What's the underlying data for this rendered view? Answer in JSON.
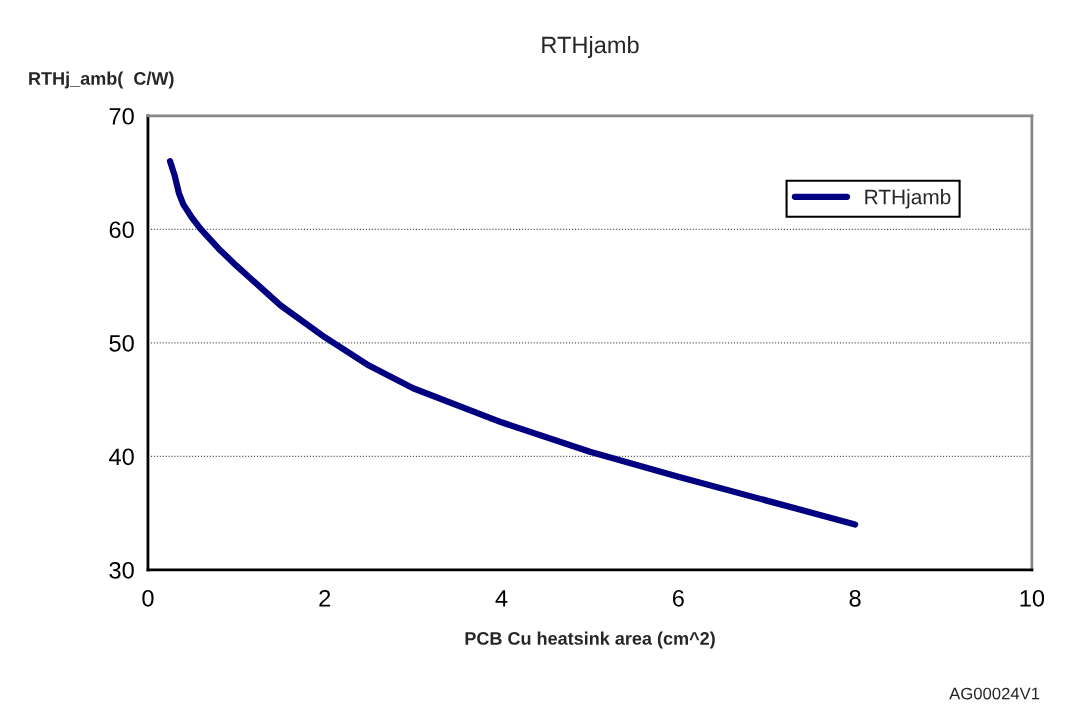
{
  "chart_data": {
    "type": "line",
    "title": "RTHjamb",
    "xlabel": "PCB Cu heatsink area (cm^2)",
    "ylabel": "RTHj_amb(  C/W)",
    "annotations": [
      "AG00024V1"
    ],
    "x": [
      0.25,
      0.3,
      0.35,
      0.4,
      0.5,
      0.6,
      0.8,
      1,
      1.5,
      2,
      2.5,
      3,
      4,
      5,
      6,
      7,
      8
    ],
    "series": [
      {
        "name": "RTHjamb",
        "color": "#000080",
        "values": [
          66,
          64.8,
          63.2,
          62.2,
          61,
          60,
          58.3,
          56.8,
          53.3,
          50.5,
          48,
          46,
          43,
          40.4,
          38.2,
          36.1,
          34
        ]
      }
    ],
    "xlim": [
      0,
      10
    ],
    "xticks": [
      0,
      2,
      4,
      6,
      8,
      10
    ],
    "ylim": [
      30,
      70
    ],
    "yticks": [
      30,
      40,
      50,
      60,
      70
    ],
    "grid": "y",
    "legend": "top right",
    "marker": "none",
    "line_style": "solid"
  }
}
